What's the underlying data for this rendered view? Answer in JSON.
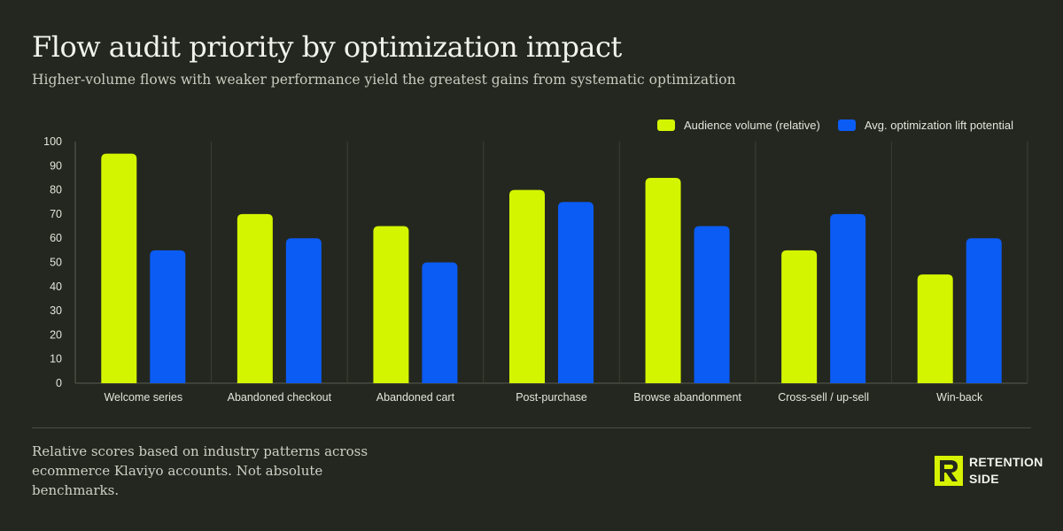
{
  "header": {
    "title": "Flow audit priority by optimization impact",
    "subtitle": "Higher-volume flows with weaker performance yield the greatest gains from systematic optimization"
  },
  "footer": {
    "note": "Relative scores based on industry patterns across ecommerce Klaviyo accounts. Not absolute benchmarks.",
    "brand_line1": "RETENTION",
    "brand_line2": "SIDE"
  },
  "colors": {
    "background": "#24271f",
    "series1": "#d4f500",
    "series2": "#0b5cf5",
    "grid": "#3c3f35"
  },
  "chart_data": {
    "type": "bar",
    "categories": [
      "Welcome series",
      "Abandoned checkout",
      "Abandoned cart",
      "Post-purchase",
      "Browse abandonment",
      "Cross-sell / up-sell",
      "Win-back"
    ],
    "series": [
      {
        "name": "Audience volume (relative)",
        "values": [
          95,
          70,
          65,
          80,
          85,
          55,
          45
        ]
      },
      {
        "name": "Avg. optimization lift potential",
        "values": [
          55,
          60,
          50,
          75,
          65,
          70,
          60
        ]
      }
    ],
    "ylim": [
      0,
      100
    ],
    "yticks": [
      0,
      10,
      20,
      30,
      40,
      50,
      60,
      70,
      80,
      90,
      100
    ],
    "legend_position": "top-right",
    "grid": "vertical category separators"
  }
}
